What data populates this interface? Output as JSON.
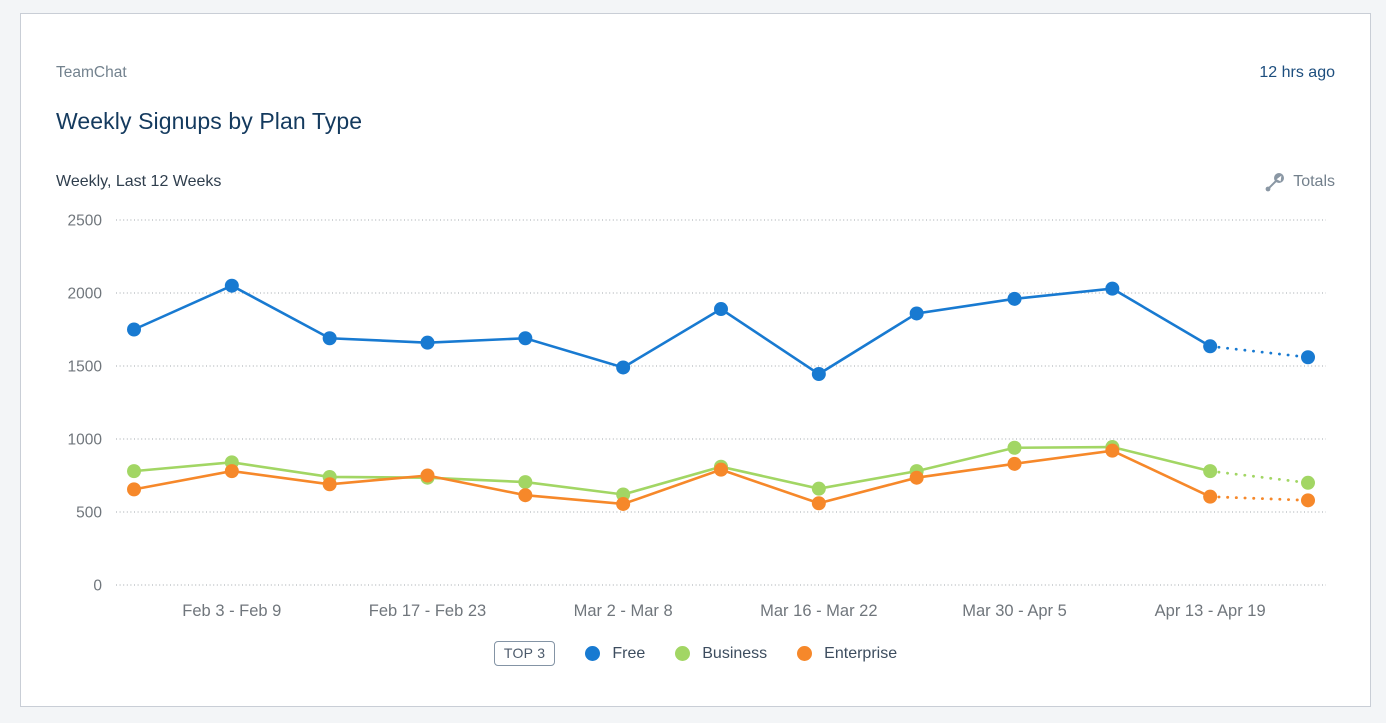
{
  "header": {
    "app_name": "TeamChat",
    "timestamp": "12 hrs ago"
  },
  "title": "Weekly Signups by Plan Type",
  "subtitle": "Weekly, Last 12 Weeks",
  "toolbar": {
    "totals_label": "Totals",
    "totals_icon": "totals-toggle-icon"
  },
  "legend": {
    "badge": "TOP 3",
    "position": "bottom"
  },
  "colors": {
    "card_background": "#ffffff",
    "page_background": "#f3f5f7",
    "card_border": "#c9ced6",
    "title_text": "#143a5e",
    "timestamp_text": "#1d4e7e",
    "muted_text": "#73828e",
    "axis_text": "#70767c",
    "gridline": "#b4b9bd",
    "series_free": "#187ad1",
    "series_business": "#a2d664",
    "series_enterprise": "#f6882a"
  },
  "chart_data": {
    "type": "line",
    "title": "Weekly Signups by Plan Type",
    "xlabel": "",
    "ylabel": "",
    "ylim": [
      0,
      2500
    ],
    "yticks": [
      0,
      500,
      1000,
      1500,
      2000,
      2500
    ],
    "grid": "horizontal-dotted",
    "legend_position": "bottom",
    "num_points": 13,
    "x_tick_labels": [
      "Feb 3 - Feb 9",
      "Feb 17 - Feb 23",
      "Mar 2 - Mar 8",
      "Mar 16 - Mar 22",
      "Mar 30 - Apr 5",
      "Apr 13 - Apr 19"
    ],
    "x_tick_point_indices": [
      1,
      3,
      5,
      7,
      9,
      11
    ],
    "last_segment_dashed": true,
    "series": [
      {
        "name": "Free",
        "color": "#187ad1",
        "values": [
          1750,
          2050,
          1690,
          1660,
          1690,
          1490,
          1890,
          1445,
          1860,
          1960,
          2030,
          1635,
          1560
        ]
      },
      {
        "name": "Business",
        "color": "#a2d664",
        "values": [
          780,
          840,
          740,
          735,
          705,
          620,
          810,
          660,
          780,
          940,
          945,
          780,
          700
        ]
      },
      {
        "name": "Enterprise",
        "color": "#f6882a",
        "values": [
          655,
          780,
          690,
          750,
          615,
          555,
          790,
          560,
          735,
          830,
          920,
          605,
          580
        ]
      }
    ]
  }
}
